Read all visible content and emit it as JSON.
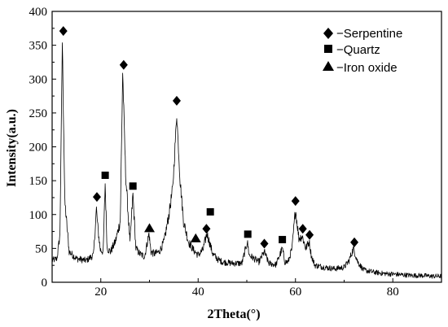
{
  "chart_data": {
    "type": "line",
    "title": "",
    "xlabel": "2Theta(°)",
    "ylabel": "Intensity(a.u.)",
    "xlim": [
      10,
      90
    ],
    "ylim": [
      0,
      400
    ],
    "x_ticks": [
      20,
      40,
      60,
      80
    ],
    "y_ticks": [
      0,
      50,
      100,
      150,
      200,
      250,
      300,
      350,
      400
    ],
    "grid": false,
    "legend_position": "top-right",
    "legend": [
      {
        "marker": "diamond",
        "label": "−Serpentine"
      },
      {
        "marker": "square",
        "label": "−Quartz"
      },
      {
        "marker": "triangle",
        "label": "−Iron oxide"
      }
    ],
    "series": [
      {
        "color": "#000000",
        "x": [
          10,
          11,
          11.6,
          12.1,
          12.6,
          13.5,
          15,
          17,
          18.5,
          19.1,
          19.4,
          19.9,
          20.5,
          20.9,
          21.3,
          22,
          23,
          24,
          24.5,
          25.1,
          26,
          26.6,
          27.2,
          28,
          29,
          29.9,
          30.3,
          31,
          32,
          33,
          34,
          34.8,
          35.6,
          36.3,
          37,
          38,
          39,
          40,
          41,
          41.8,
          42.3,
          43,
          44,
          45,
          47,
          49,
          50.1,
          50.5,
          51.5,
          52.5,
          53.6,
          54.5,
          56,
          57.3,
          57.8,
          58.5,
          59.3,
          60,
          60.7,
          61.4,
          62.1,
          62.8,
          63.3,
          64,
          66,
          68,
          70,
          71,
          71.9,
          72.8,
          74,
          76,
          78,
          80,
          82,
          84,
          86,
          88,
          90
        ],
        "y": [
          32,
          35,
          70,
          355,
          120,
          45,
          35,
          32,
          40,
          108,
          80,
          48,
          45,
          146,
          50,
          45,
          60,
          90,
          310,
          160,
          58,
          130,
          50,
          42,
          38,
          72,
          45,
          42,
          45,
          60,
          100,
          140,
          248,
          150,
          90,
          60,
          48,
          40,
          48,
          72,
          60,
          42,
          34,
          30,
          28,
          28,
          60,
          40,
          35,
          30,
          45,
          28,
          26,
          50,
          30,
          30,
          50,
          108,
          65,
          68,
          50,
          60,
          38,
          25,
          22,
          20,
          22,
          32,
          50,
          30,
          18,
          15,
          13,
          12,
          11,
          10,
          10,
          9,
          9
        ]
      }
    ],
    "markers": [
      {
        "type": "diamond",
        "x": 12.3,
        "y": 371
      },
      {
        "type": "diamond",
        "x": 19.2,
        "y": 126
      },
      {
        "type": "square",
        "x": 20.9,
        "y": 158
      },
      {
        "type": "diamond",
        "x": 24.7,
        "y": 321
      },
      {
        "type": "square",
        "x": 26.6,
        "y": 142
      },
      {
        "type": "triangle",
        "x": 30.0,
        "y": 80
      },
      {
        "type": "diamond",
        "x": 35.6,
        "y": 268
      },
      {
        "type": "triangle",
        "x": 39.5,
        "y": 65
      },
      {
        "type": "diamond",
        "x": 41.7,
        "y": 79
      },
      {
        "type": "square",
        "x": 42.5,
        "y": 104
      },
      {
        "type": "square",
        "x": 50.2,
        "y": 71
      },
      {
        "type": "diamond",
        "x": 53.6,
        "y": 57
      },
      {
        "type": "square",
        "x": 57.3,
        "y": 63
      },
      {
        "type": "diamond",
        "x": 60.0,
        "y": 120
      },
      {
        "type": "diamond",
        "x": 61.5,
        "y": 79
      },
      {
        "type": "diamond",
        "x": 62.9,
        "y": 70
      },
      {
        "type": "diamond",
        "x": 72.1,
        "y": 59
      }
    ]
  }
}
